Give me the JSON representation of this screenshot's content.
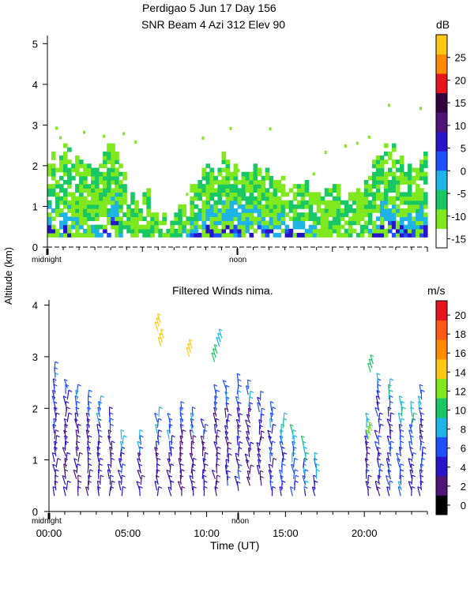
{
  "header": {
    "title_line1": "Perdigao   5 Jun 17 Day 156",
    "title_line2": "SNR Beam 4 Azi 312 Elev 90"
  },
  "shared": {
    "ylabel": "Altitude (km)",
    "xlabel": "Time (UT)",
    "midnight_label": "midnight",
    "noon_label": "noon",
    "x_tick_labels": [
      "00:00",
      "05:00",
      "10:00",
      "15:00",
      "20:00"
    ]
  },
  "chart_data": [
    {
      "type": "heatmap",
      "title": "SNR Beam 4 Azi 312 Elev 90",
      "xlabel": "",
      "ylabel": "Altitude (km)",
      "xlim": [
        0,
        24
      ],
      "ylim": [
        0,
        5.2
      ],
      "y_ticks": [
        0,
        1,
        2,
        3,
        4,
        5
      ],
      "colorbar": {
        "unit": "dB",
        "ticks": [
          -15,
          -10,
          -5,
          0,
          5,
          10,
          15,
          20,
          25
        ],
        "range": [
          -17,
          30
        ],
        "colors": [
          "#ffffff",
          "#7fe81e",
          "#19c864",
          "#1eb4e6",
          "#1e50ff",
          "#2814c8",
          "#501478",
          "#32003c",
          "#e6141e",
          "#ff8c00",
          "#ffc814"
        ]
      },
      "profile_columns": [
        {
          "t": 0.0,
          "top": 2.2,
          "core": 1.3
        },
        {
          "t": 0.5,
          "top": 2.1,
          "core": 1.0
        },
        {
          "t": 1.0,
          "top": 2.5,
          "core": 1.2
        },
        {
          "t": 1.5,
          "top": 2.2,
          "core": 1.0
        },
        {
          "t": 2.0,
          "top": 2.1,
          "core": 0.8
        },
        {
          "t": 2.5,
          "top": 1.8,
          "core": 0.6
        },
        {
          "t": 3.0,
          "top": 2.0,
          "core": 0.5
        },
        {
          "t": 3.5,
          "top": 2.4,
          "core": 1.0
        },
        {
          "t": 4.0,
          "top": 2.5,
          "core": 1.8
        },
        {
          "t": 4.5,
          "top": 1.9,
          "core": 0.4
        },
        {
          "t": 5.0,
          "top": 1.2,
          "core": 0.2
        },
        {
          "t": 5.5,
          "top": 1.0,
          "core": 0.0
        },
        {
          "t": 6.0,
          "top": 1.4,
          "core": 0.2
        },
        {
          "t": 6.5,
          "top": 0.9,
          "core": 0.0
        },
        {
          "t": 7.0,
          "top": 0.7,
          "core": 0.0
        },
        {
          "t": 7.5,
          "top": 0.5,
          "core": 0.0
        },
        {
          "t": 8.0,
          "top": 0.9,
          "core": 0.2
        },
        {
          "t": 8.5,
          "top": 1.2,
          "core": 0.5
        },
        {
          "t": 9.0,
          "top": 1.6,
          "core": 0.8
        },
        {
          "t": 9.5,
          "top": 1.7,
          "core": 1.0
        },
        {
          "t": 10.0,
          "top": 2.0,
          "core": 1.2
        },
        {
          "t": 10.5,
          "top": 1.9,
          "core": 1.3
        },
        {
          "t": 11.0,
          "top": 2.1,
          "core": 1.4
        },
        {
          "t": 11.5,
          "top": 2.0,
          "core": 1.4
        },
        {
          "t": 12.0,
          "top": 1.8,
          "core": 1.2
        },
        {
          "t": 12.5,
          "top": 1.9,
          "core": 1.3
        },
        {
          "t": 13.0,
          "top": 2.0,
          "core": 1.2
        },
        {
          "t": 13.5,
          "top": 1.8,
          "core": 1.1
        },
        {
          "t": 14.0,
          "top": 1.7,
          "core": 1.0
        },
        {
          "t": 14.5,
          "top": 1.6,
          "core": 1.0
        },
        {
          "t": 15.0,
          "top": 1.5,
          "core": 0.9
        },
        {
          "t": 15.5,
          "top": 1.6,
          "core": 0.8
        },
        {
          "t": 16.0,
          "top": 1.5,
          "core": 0.7
        },
        {
          "t": 16.5,
          "top": 1.4,
          "core": 0.6
        },
        {
          "t": 17.0,
          "top": 1.2,
          "core": 0.3
        },
        {
          "t": 17.5,
          "top": 1.3,
          "core": 0.2
        },
        {
          "t": 18.0,
          "top": 1.4,
          "core": 0.3
        },
        {
          "t": 18.5,
          "top": 1.3,
          "core": 0.2
        },
        {
          "t": 19.0,
          "top": 1.2,
          "core": 0.2
        },
        {
          "t": 19.5,
          "top": 1.4,
          "core": 0.3
        },
        {
          "t": 20.0,
          "top": 1.6,
          "core": 0.5
        },
        {
          "t": 20.5,
          "top": 2.1,
          "core": 1.0
        },
        {
          "t": 21.0,
          "top": 2.4,
          "core": 1.4
        },
        {
          "t": 21.5,
          "top": 2.5,
          "core": 1.5
        },
        {
          "t": 22.0,
          "top": 2.2,
          "core": 1.3
        },
        {
          "t": 22.5,
          "top": 2.0,
          "core": 1.1
        },
        {
          "t": 23.0,
          "top": 1.9,
          "core": 1.0
        },
        {
          "t": 23.5,
          "top": 2.2,
          "core": 1.2
        }
      ],
      "min_altitude": 0.25
    },
    {
      "type": "scatter",
      "title": "Filtered Winds nima.",
      "xlabel": "Time (UT)",
      "ylabel": "Altitude (km)",
      "xlim": [
        0,
        24
      ],
      "ylim": [
        0,
        4.1
      ],
      "y_ticks": [
        0,
        1,
        2,
        3,
        4
      ],
      "colorbar": {
        "unit": "m/s",
        "ticks": [
          0,
          2,
          4,
          6,
          8,
          10,
          12,
          14,
          16,
          18,
          20
        ],
        "colors": [
          "#000000",
          "#501478",
          "#2814c8",
          "#1e50ff",
          "#1eb4e6",
          "#19c864",
          "#7fe81e",
          "#ffc814",
          "#ff8c00",
          "#ff5a14",
          "#e6141e"
        ]
      },
      "wind_columns": [
        {
          "t": 0.4,
          "bottom": 0.3,
          "top": 2.8,
          "speed": 4
        },
        {
          "t": 1.1,
          "bottom": 0.3,
          "top": 2.4,
          "speed": 3
        },
        {
          "t": 1.8,
          "bottom": 0.3,
          "top": 2.3,
          "speed": 3
        },
        {
          "t": 2.5,
          "bottom": 0.3,
          "top": 2.2,
          "speed": 3
        },
        {
          "t": 3.2,
          "bottom": 0.3,
          "top": 2.1,
          "speed": 4
        },
        {
          "t": 3.9,
          "bottom": 0.3,
          "top": 1.9,
          "speed": 3
        },
        {
          "t": 4.6,
          "bottom": 0.3,
          "top": 1.5,
          "speed": 4
        },
        {
          "t": 5.8,
          "bottom": 0.3,
          "top": 1.5,
          "speed": 3
        },
        {
          "t": 6.9,
          "bottom": 0.3,
          "top": 1.9,
          "speed": 4
        },
        {
          "t": 7.7,
          "bottom": 0.3,
          "top": 1.8,
          "speed": 4
        },
        {
          "t": 8.4,
          "bottom": 0.3,
          "top": 2.0,
          "speed": 3
        },
        {
          "t": 9.1,
          "bottom": 0.3,
          "top": 1.9,
          "speed": 3
        },
        {
          "t": 9.8,
          "bottom": 0.3,
          "top": 1.7,
          "speed": 3
        },
        {
          "t": 10.6,
          "bottom": 0.3,
          "top": 2.3,
          "speed": 3
        },
        {
          "t": 11.3,
          "bottom": 0.5,
          "top": 2.4,
          "speed": 4
        },
        {
          "t": 12.0,
          "bottom": 0.4,
          "top": 2.5,
          "speed": 4
        },
        {
          "t": 12.7,
          "bottom": 0.5,
          "top": 2.4,
          "speed": 3
        },
        {
          "t": 13.4,
          "bottom": 0.5,
          "top": 2.2,
          "speed": 3
        },
        {
          "t": 14.1,
          "bottom": 0.3,
          "top": 2.0,
          "speed": 4
        },
        {
          "t": 14.8,
          "bottom": 0.3,
          "top": 1.8,
          "speed": 5
        },
        {
          "t": 15.5,
          "bottom": 0.3,
          "top": 1.6,
          "speed": 6
        },
        {
          "t": 16.2,
          "bottom": 0.3,
          "top": 1.3,
          "speed": 6
        },
        {
          "t": 16.9,
          "bottom": 0.3,
          "top": 1.0,
          "speed": 5
        },
        {
          "t": 20.2,
          "bottom": 0.3,
          "top": 1.8,
          "speed": 4
        },
        {
          "t": 20.9,
          "bottom": 0.3,
          "top": 2.6,
          "speed": 4
        },
        {
          "t": 21.6,
          "bottom": 0.3,
          "top": 2.4,
          "speed": 5
        },
        {
          "t": 22.3,
          "bottom": 0.3,
          "top": 2.1,
          "speed": 6
        },
        {
          "t": 23.0,
          "bottom": 0.3,
          "top": 2.0,
          "speed": 5
        },
        {
          "t": 23.6,
          "bottom": 0.3,
          "top": 2.3,
          "speed": 4
        }
      ],
      "high_barbs": [
        {
          "t": 6.9,
          "alt": 3.5,
          "speed": 14
        },
        {
          "t": 7.1,
          "alt": 3.2,
          "speed": 13
        },
        {
          "t": 8.9,
          "alt": 3.0,
          "speed": 13
        },
        {
          "t": 10.8,
          "alt": 3.2,
          "speed": 8
        },
        {
          "t": 10.5,
          "alt": 2.9,
          "speed": 9
        },
        {
          "t": 20.3,
          "alt": 1.4,
          "speed": 12
        },
        {
          "t": 20.4,
          "alt": 2.7,
          "speed": 9
        }
      ]
    }
  ]
}
